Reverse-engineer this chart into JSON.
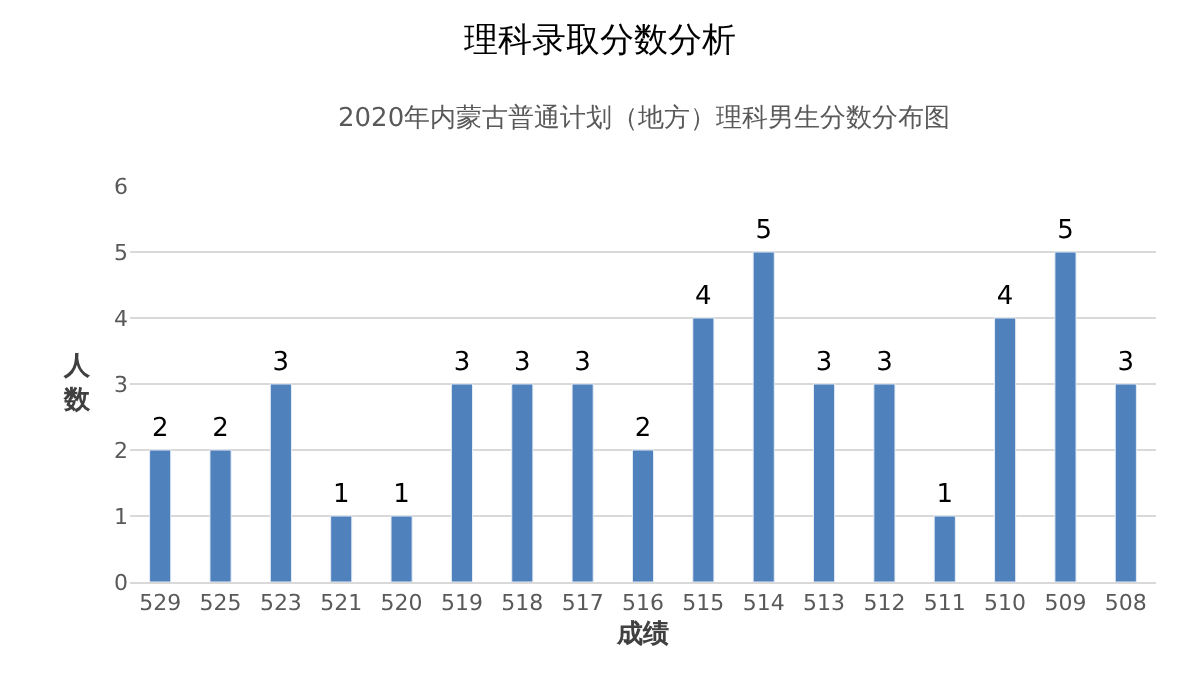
{
  "chart_data": {
    "type": "bar",
    "title": "理科录取分数分析",
    "subtitle": "2020年内蒙古普通计划（地方）理科男生分数分布图",
    "xlabel": "成绩",
    "ylabel": "人数",
    "categories": [
      "529",
      "525",
      "523",
      "521",
      "520",
      "519",
      "518",
      "517",
      "516",
      "515",
      "514",
      "513",
      "512",
      "511",
      "510",
      "509",
      "508"
    ],
    "values": [
      2,
      2,
      3,
      1,
      1,
      3,
      3,
      3,
      2,
      4,
      5,
      3,
      3,
      1,
      4,
      5,
      3
    ],
    "color": "#4f81bd",
    "ylim": [
      0,
      6
    ],
    "yticks": [
      0,
      1,
      2,
      3,
      4,
      5,
      6
    ],
    "grid": "y",
    "data_labels": true,
    "legend": false
  }
}
